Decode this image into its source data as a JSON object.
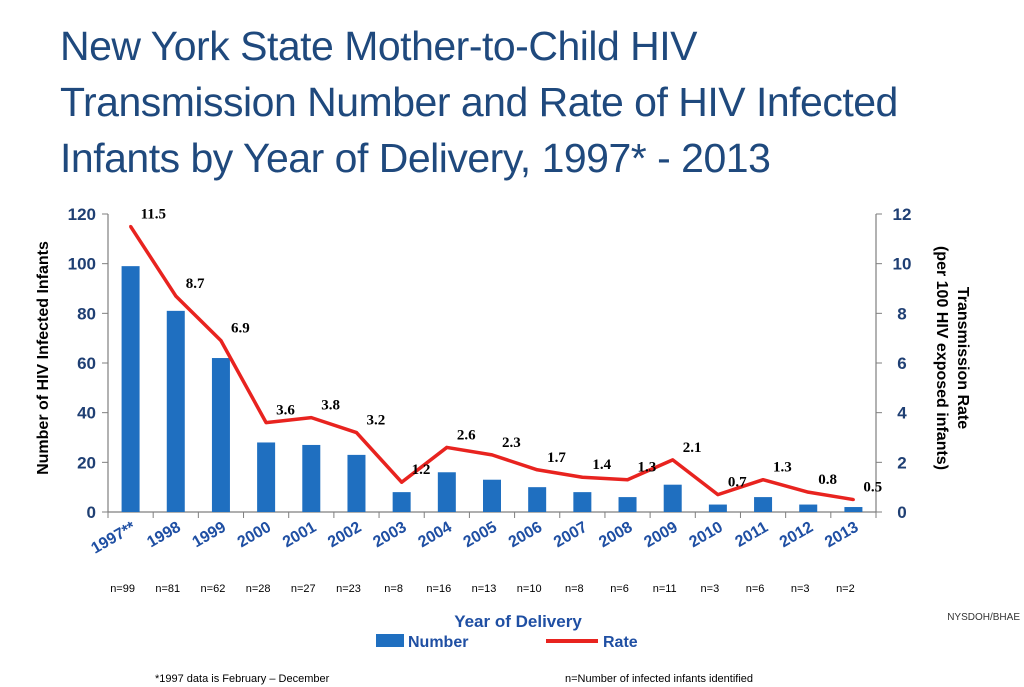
{
  "title_lines": [
    "New York State Mother-to-Child HIV",
    "Transmission Number and Rate of HIV Infected",
    "Infants by Year of Delivery, 1997* - 2013"
  ],
  "chart_data": {
    "type": "bar+line",
    "categories": [
      "1997**",
      "1998",
      "1999",
      "2000",
      "2001",
      "2002",
      "2003",
      "2004",
      "2005",
      "2006",
      "2007",
      "2008",
      "2009",
      "2010",
      "2011",
      "2012",
      "2013"
    ],
    "n_labels": [
      "n=99",
      "n=81",
      "n=62",
      "n=28",
      "n=27",
      "n=23",
      "n=8",
      "n=16",
      "n=13",
      "n=10",
      "n=8",
      "n=6",
      "n=11",
      "n=3",
      "n=6",
      "n=3",
      "n=2"
    ],
    "series": [
      {
        "name": "Number",
        "type": "bar",
        "axis": "left",
        "color": "#1f6fc0",
        "values": [
          99,
          81,
          62,
          28,
          27,
          23,
          8,
          16,
          13,
          10,
          8,
          6,
          11,
          3,
          6,
          3,
          2
        ]
      },
      {
        "name": "Rate",
        "type": "line",
        "axis": "right",
        "color": "#e8231f",
        "values": [
          11.5,
          8.7,
          6.9,
          3.6,
          3.8,
          3.2,
          1.2,
          2.6,
          2.3,
          1.7,
          1.4,
          1.3,
          2.1,
          0.7,
          1.3,
          0.8,
          0.5
        ],
        "labels": [
          "11.5",
          "8.7",
          "6.9",
          "3.6",
          "3.8",
          "3.2",
          "1.2",
          "2.6",
          "2.3",
          "1.7",
          "1.4",
          "1.3",
          "2.1",
          "0.7",
          "1.3",
          "0.8",
          "0.5"
        ]
      }
    ],
    "ylim_left": [
      0,
      120
    ],
    "yticks_left": [
      "0",
      "20",
      "40",
      "60",
      "80",
      "100",
      "120"
    ],
    "ylim_right": [
      0,
      12
    ],
    "yticks_right": [
      "0",
      "2",
      "4",
      "6",
      "8",
      "10",
      "12"
    ],
    "ylabel_left": "Number of HIV Infected Infants",
    "ylabel_right_line1": "Transmission Rate",
    "ylabel_right_line2": "(per 100 HIV exposed infants)",
    "xlabel": "Year of Delivery",
    "legend": {
      "number": "Number",
      "rate": "Rate"
    }
  },
  "footnote_left": "*1997 data is February – December",
  "footnote_right": "n=Number of infected infants identified",
  "source": "NYSDOH/BHAE"
}
